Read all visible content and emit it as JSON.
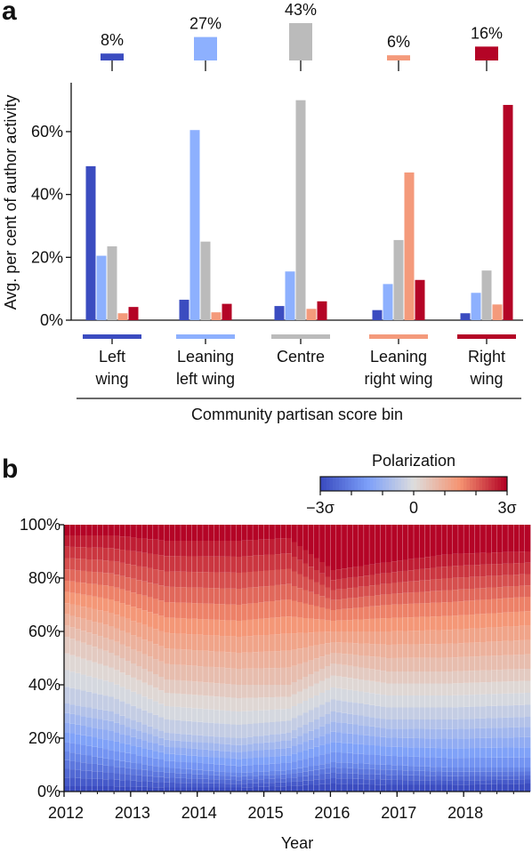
{
  "panel_a_label": "a",
  "panel_b_label": "b",
  "colors": {
    "left": "#3b4cc0",
    "leaning_left": "#8db0fe",
    "centre": "#bbbbbb",
    "leaning_right": "#f49a7b",
    "right": "#b40426"
  },
  "chart_data": [
    {
      "type": "bar",
      "ylabel": "Avg. per cent of author activity",
      "xlabel": "Community partisan score bin",
      "ylim": [
        0,
        75
      ],
      "yticks": [
        "0%",
        "20%",
        "40%",
        "60%"
      ],
      "categories": [
        "Left\nwing",
        "Leaning\nleft wing",
        "Centre",
        "Leaning\nright wing",
        "Right\nwing"
      ],
      "series": [
        {
          "name": "Left wing",
          "color": "#3b4cc0",
          "values": [
            49,
            6.5,
            4.5,
            3.2,
            2.2
          ]
        },
        {
          "name": "Leaning left wing",
          "color": "#8db0fe",
          "values": [
            20.5,
            60.5,
            15.5,
            11.5,
            8.7
          ]
        },
        {
          "name": "Centre",
          "color": "#bbbbbb",
          "values": [
            23.5,
            25,
            70,
            25.5,
            15.8
          ]
        },
        {
          "name": "Leaning right wing",
          "color": "#f49a7b",
          "values": [
            2.2,
            2.5,
            3.6,
            47,
            5
          ]
        },
        {
          "name": "Right wing",
          "color": "#b40426",
          "values": [
            4.2,
            5.2,
            6,
            12.8,
            68.5
          ]
        }
      ],
      "population_share": {
        "labels": [
          "8%",
          "27%",
          "43%",
          "6%",
          "16%"
        ],
        "values": [
          8,
          27,
          43,
          6,
          16
        ]
      }
    },
    {
      "type": "area",
      "xlabel": "Year",
      "ylim": [
        0,
        100
      ],
      "yticks": [
        "0%",
        "20%",
        "40%",
        "60%",
        "80%",
        "100%"
      ],
      "xticks": [
        "2012",
        "2013",
        "2014",
        "2015",
        "2016",
        "2017",
        "2018"
      ],
      "colorbar": {
        "title": "Polarization",
        "min_label": "−3σ",
        "mid_label": "0",
        "max_label": "3σ"
      },
      "bands": 24,
      "months": 84,
      "boundaries_key_months": {
        "months": [
          0,
          8,
          18,
          31,
          40,
          48,
          58,
          69,
          83
        ],
        "band_1_top": [
          2,
          2,
          1.5,
          1.5,
          2,
          3,
          2.5,
          2.5,
          3
        ],
        "p20": [
          15,
          12,
          9,
          7,
          8,
          11,
          10,
          9,
          9
        ],
        "p40": [
          33,
          30,
          22,
          20,
          22,
          30,
          27,
          27,
          28
        ],
        "p60": [
          58,
          52,
          42,
          40,
          40,
          48,
          45,
          45,
          46
        ],
        "p80": [
          79,
          77,
          71,
          70,
          72,
          68,
          70,
          71,
          73
        ],
        "p95": [
          96,
          96,
          94,
          94,
          95,
          83,
          86,
          89,
          90
        ]
      }
    }
  ]
}
